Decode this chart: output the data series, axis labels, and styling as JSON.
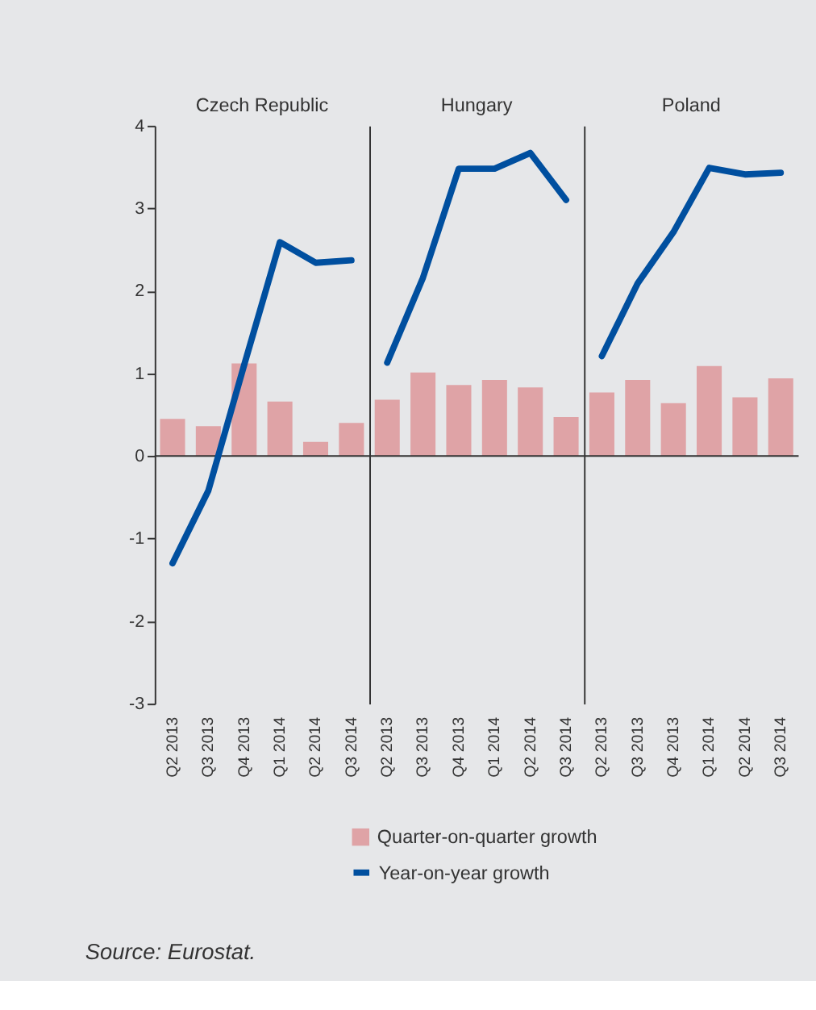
{
  "chart_data": [
    {
      "type": "bar",
      "title": "Czech Republic",
      "categories": [
        "Q2 2013",
        "Q3 2013",
        "Q4 2013",
        "Q1 2014",
        "Q2 2014",
        "Q3 2014"
      ],
      "series": [
        {
          "name": "Quarter-on-quarter growth",
          "color": "#dfa3a6",
          "values": [
            0.45,
            0.36,
            1.12,
            0.66,
            0.17,
            0.4
          ]
        },
        {
          "name": "Year-on-year growth",
          "type": "line",
          "color": "#004f9f",
          "values": [
            -1.3,
            -0.42,
            1.1,
            2.59,
            2.34,
            2.37
          ]
        }
      ],
      "ylim": [
        -3,
        4
      ],
      "yticks": [
        -3,
        -2,
        -1,
        0,
        1,
        2,
        3,
        4
      ],
      "legend": "bottom",
      "line_style": "solid",
      "marker": "none",
      "annotations": [
        "Source: Eurostat."
      ]
    },
    {
      "type": "bar",
      "title": "Hungary",
      "categories": [
        "Q2 2013",
        "Q3 2013",
        "Q4 2013",
        "Q1 2014",
        "Q2 2014",
        "Q3 2014"
      ],
      "series": [
        {
          "color": "#dfa3a6",
          "values": [
            0.68,
            1.01,
            0.86,
            0.92,
            0.83,
            0.47
          ]
        },
        {
          "type": "line",
          "color": "#004f9f",
          "values": [
            1.13,
            2.16,
            3.48,
            3.48,
            3.67,
            3.1
          ]
        }
      ],
      "ylim": [
        -3,
        4
      ],
      "yticks": [
        -3,
        -2,
        -1,
        0,
        1,
        2,
        3,
        4
      ],
      "tick_labels": "x",
      "line_style": "solid",
      "marker": "none"
    },
    {
      "type": "bar",
      "title": "Poland",
      "categories": [
        "Q2 2013",
        "Q3 2013",
        "Q4 2013",
        "Q1 2014",
        "Q2 2014",
        "Q3 2014"
      ],
      "series": [
        {
          "color": "#dfa3a6",
          "values": [
            0.77,
            0.92,
            0.64,
            1.09,
            0.71,
            0.94
          ]
        },
        {
          "type": "line",
          "color": "#004f9f",
          "values": [
            1.21,
            2.09,
            2.71,
            3.49,
            3.41,
            3.43
          ]
        }
      ],
      "ylim": [
        -3,
        4
      ],
      "yticks": [
        -3,
        -2,
        -1,
        0,
        1,
        2,
        3,
        4
      ],
      "tick_labels": "x",
      "line_style": "solid",
      "marker": "none"
    }
  ]
}
